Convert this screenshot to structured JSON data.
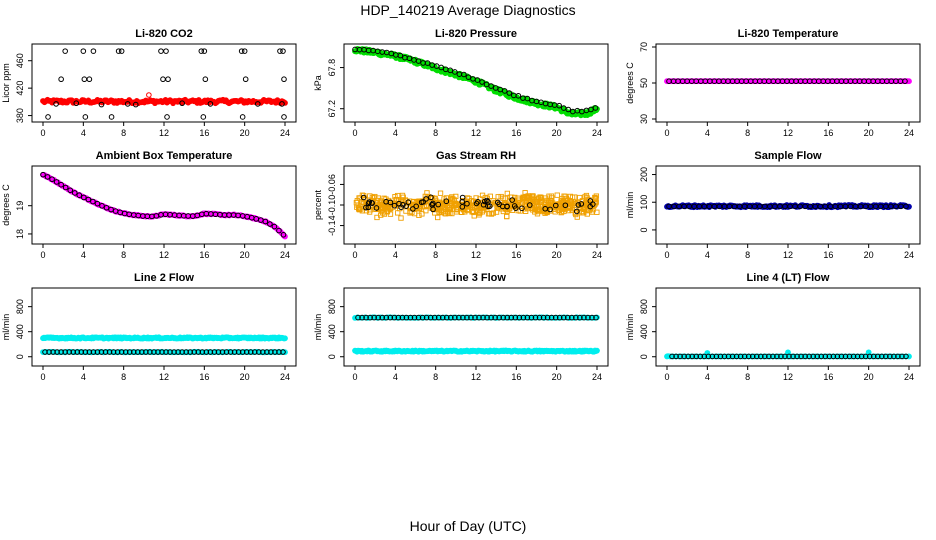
{
  "figure": {
    "title": "HDP_140219  Average Diagnostics",
    "xlabel": "Hour of Day (UTC)"
  },
  "chart_data": [
    {
      "type": "scatter",
      "title": "Li-820 CO2",
      "ylabel": "Licor ppm",
      "xlim": [
        0,
        24
      ],
      "ylim": [
        375,
        480
      ],
      "xticks": [
        0,
        4,
        8,
        12,
        16,
        20,
        24
      ],
      "yticks": [
        380,
        420,
        460
      ],
      "series": [
        {
          "color": "#000000",
          "marker": "open-circle",
          "kind": "levels",
          "x": [
            2.2,
            4.0,
            5.0,
            7.5,
            7.8,
            11.7,
            12.2,
            15.7,
            16.0,
            19.7,
            20.0,
            23.5,
            23.8
          ],
          "y": 474
        },
        {
          "color": "#000000",
          "marker": "open-circle",
          "kind": "levels",
          "x": [
            1.8,
            4.1,
            4.6,
            11.9,
            12.4,
            16.1,
            20.1,
            23.9
          ],
          "y": 433
        },
        {
          "color": "#000000",
          "marker": "open-circle",
          "kind": "levels",
          "x": [
            0.5,
            4.2,
            6.8,
            12.3,
            15.9,
            19.8,
            23.9
          ],
          "y": 378
        },
        {
          "color": "#ff0000",
          "marker": "filled-circle",
          "kind": "band",
          "x0": 0,
          "x1": 24,
          "y": [
            398,
            403
          ],
          "step": 0.15
        },
        {
          "color": "#ff0000",
          "marker": "open-circle",
          "kind": "points",
          "x": [
            10.5
          ],
          "y": [
            410
          ]
        },
        {
          "color": "#000000",
          "marker": "open-circle",
          "kind": "points",
          "x": [
            1.3,
            3.3,
            5.8,
            8.4,
            9.2,
            13.8,
            16.6,
            21.3,
            23.7
          ],
          "y": [
            397,
            398,
            396,
            397,
            396,
            398,
            397,
            397,
            397
          ]
        }
      ]
    },
    {
      "type": "scatter",
      "title": "Li-820 Pressure",
      "ylabel": "kPa",
      "xlim": [
        0,
        24
      ],
      "ylim": [
        67.05,
        68.1
      ],
      "xticks": [
        0,
        4,
        8,
        12,
        16,
        20,
        24
      ],
      "yticks": [
        67.2,
        67.8
      ],
      "series": [
        {
          "color": "#00dd00",
          "marker": "filled-circle",
          "kind": "curve",
          "x": [
            0,
            2,
            4,
            6,
            8,
            10,
            12,
            14,
            16,
            18,
            20,
            21.5,
            23,
            24
          ],
          "y": [
            68.06,
            68.02,
            67.97,
            67.89,
            67.79,
            67.7,
            67.6,
            67.47,
            67.36,
            67.28,
            67.22,
            67.12,
            67.13,
            67.2
          ],
          "step": 0.08,
          "jitter": 0.03
        },
        {
          "color": "#000000",
          "marker": "open-circle",
          "kind": "curve",
          "x": [
            0,
            2,
            4,
            6,
            8,
            10,
            12,
            14,
            16,
            18,
            20,
            21.5,
            23,
            24
          ],
          "y": [
            68.07,
            68.04,
            67.99,
            67.91,
            67.82,
            67.73,
            67.63,
            67.5,
            67.39,
            67.31,
            67.25,
            67.16,
            67.17,
            67.22
          ],
          "step": 0.45,
          "jitter": 0.01
        }
      ]
    },
    {
      "type": "scatter",
      "title": "Li-820 Temperature",
      "ylabel": "degrees C",
      "xlim": [
        0,
        24
      ],
      "ylim": [
        30,
        70
      ],
      "xticks": [
        0,
        4,
        8,
        12,
        16,
        20,
        24
      ],
      "yticks": [
        30,
        50,
        70
      ],
      "series": [
        {
          "color": "#ff00ff",
          "marker": "filled-circle",
          "kind": "band",
          "x0": 0,
          "x1": 24,
          "y": [
            51,
            51
          ],
          "step": 0.15
        },
        {
          "color": "#000000",
          "marker": "open-circle",
          "kind": "band",
          "x0": 0.2,
          "x1": 24,
          "y": [
            51,
            51
          ],
          "step": 0.45
        }
      ]
    },
    {
      "type": "scatter",
      "title": "Ambient Box Temperature",
      "ylabel": "degrees C",
      "xlim": [
        0,
        24
      ],
      "ylim": [
        17.75,
        20.3
      ],
      "xticks": [
        0,
        4,
        8,
        12,
        16,
        20,
        24
      ],
      "yticks": [
        18.0,
        19.0
      ],
      "series": [
        {
          "color": "#ff00ff",
          "marker": "filled-circle",
          "kind": "curve",
          "x": [
            0,
            1,
            2,
            3,
            4,
            5,
            6,
            7,
            8,
            9,
            10,
            11,
            12,
            13,
            14,
            15,
            16,
            17,
            18,
            19,
            20,
            21,
            22,
            23,
            24
          ],
          "y": [
            20.1,
            19.92,
            19.7,
            19.48,
            19.3,
            19.14,
            18.97,
            18.83,
            18.73,
            18.67,
            18.63,
            18.62,
            18.7,
            18.67,
            18.64,
            18.63,
            18.72,
            18.7,
            18.67,
            18.67,
            18.63,
            18.55,
            18.45,
            18.25,
            17.92
          ],
          "step": 0.1,
          "jitter": 0.02
        },
        {
          "color": "#000000",
          "marker": "open-circle",
          "kind": "curve",
          "x": [
            0,
            1,
            2,
            3,
            4,
            5,
            6,
            7,
            8,
            9,
            10,
            11,
            12,
            13,
            14,
            15,
            16,
            17,
            18,
            19,
            20,
            21,
            22,
            23,
            24
          ],
          "y": [
            20.1,
            19.92,
            19.7,
            19.48,
            19.3,
            19.14,
            18.97,
            18.83,
            18.73,
            18.67,
            18.63,
            18.62,
            18.7,
            18.67,
            18.64,
            18.63,
            18.72,
            18.7,
            18.67,
            18.67,
            18.63,
            18.55,
            18.45,
            18.25,
            17.92
          ],
          "step": 0.45,
          "jitter": 0
        }
      ]
    },
    {
      "type": "scatter",
      "title": "Gas Stream RH",
      "ylabel": "percent",
      "xlim": [
        0,
        24
      ],
      "ylim": [
        -0.17,
        -0.03
      ],
      "xticks": [
        0,
        4,
        8,
        12,
        16,
        20,
        24
      ],
      "yticks": [
        -0.14,
        -0.1,
        -0.06
      ],
      "series": [
        {
          "color": "#f0a000",
          "marker": "open-square",
          "kind": "cloud",
          "x0": 0.1,
          "x1": 24,
          "center": -0.1,
          "spread": 0.028,
          "count": 620
        },
        {
          "color": "#000000",
          "marker": "open-circle",
          "kind": "cloud",
          "x0": 0.2,
          "x1": 24,
          "center": -0.1,
          "spread": 0.018,
          "count": 60
        }
      ]
    },
    {
      "type": "scatter",
      "title": "Sample Flow",
      "ylabel": "ml/min",
      "xlim": [
        0,
        24
      ],
      "ylim": [
        -40,
        220
      ],
      "xticks": [
        0,
        4,
        8,
        12,
        16,
        20,
        24
      ],
      "yticks": [
        0,
        100,
        200
      ],
      "series": [
        {
          "color": "#0000aa",
          "marker": "filled-circle",
          "kind": "band",
          "x0": 0,
          "x1": 24,
          "y": [
            82,
            90
          ],
          "step": 0.12
        },
        {
          "color": "#000000",
          "marker": "open-circle",
          "kind": "band",
          "x0": 0.2,
          "x1": 24,
          "y": [
            85,
            85
          ],
          "step": 0.5
        }
      ]
    },
    {
      "type": "scatter",
      "title": "Line 2 Flow",
      "ylabel": "ml/min",
      "xlim": [
        0,
        24
      ],
      "ylim": [
        -100,
        1050
      ],
      "xticks": [
        0,
        4,
        8,
        12,
        16,
        20,
        24
      ],
      "yticks": [
        0,
        400,
        800
      ],
      "series": [
        {
          "color": "#00eeee",
          "marker": "filled-circle",
          "kind": "band",
          "x0": 0,
          "x1": 24,
          "y": [
            290,
            310
          ],
          "step": 0.1
        },
        {
          "color": "#00eeee",
          "marker": "filled-circle",
          "kind": "band",
          "x0": 0,
          "x1": 24,
          "y": [
            70,
            80
          ],
          "step": 0.2
        },
        {
          "color": "#000000",
          "marker": "open-circle",
          "kind": "band",
          "x0": 0.2,
          "x1": 24,
          "y": [
            75,
            75
          ],
          "step": 0.4
        }
      ]
    },
    {
      "type": "scatter",
      "title": "Line 3 Flow",
      "ylabel": "ml/min",
      "xlim": [
        0,
        24
      ],
      "ylim": [
        -100,
        1050
      ],
      "xticks": [
        0,
        4,
        8,
        12,
        16,
        20,
        24
      ],
      "yticks": [
        0,
        400,
        800
      ],
      "series": [
        {
          "color": "#00eeee",
          "marker": "filled-circle",
          "kind": "band",
          "x0": 0,
          "x1": 24,
          "y": [
            80,
            100
          ],
          "step": 0.1
        },
        {
          "color": "#00eeee",
          "marker": "filled-circle",
          "kind": "band",
          "x0": 0,
          "x1": 24,
          "y": [
            620,
            630
          ],
          "step": 0.25
        },
        {
          "color": "#000000",
          "marker": "open-circle",
          "kind": "band",
          "x0": 0.3,
          "x1": 24,
          "y": [
            625,
            625
          ],
          "step": 0.4
        }
      ]
    },
    {
      "type": "scatter",
      "title": "Line 4 (LT) Flow",
      "ylabel": "ml/min",
      "xlim": [
        0,
        24
      ],
      "ylim": [
        -100,
        1050
      ],
      "xticks": [
        0,
        4,
        8,
        12,
        16,
        20,
        24
      ],
      "yticks": [
        0,
        400,
        800
      ],
      "series": [
        {
          "color": "#00eeee",
          "marker": "filled-circle",
          "kind": "points",
          "x": [
            0.1,
            4.0,
            12.0,
            20.0
          ],
          "y": [
            10,
            60,
            70,
            70
          ]
        },
        {
          "color": "#00eeee",
          "marker": "filled-circle",
          "kind": "band",
          "x0": 0,
          "x1": 24,
          "y": [
            5,
            5
          ],
          "step": 0.3
        },
        {
          "color": "#000000",
          "marker": "open-circle",
          "kind": "band",
          "x0": 0.5,
          "x1": 24,
          "y": [
            5,
            5
          ],
          "step": 0.4
        }
      ]
    }
  ]
}
